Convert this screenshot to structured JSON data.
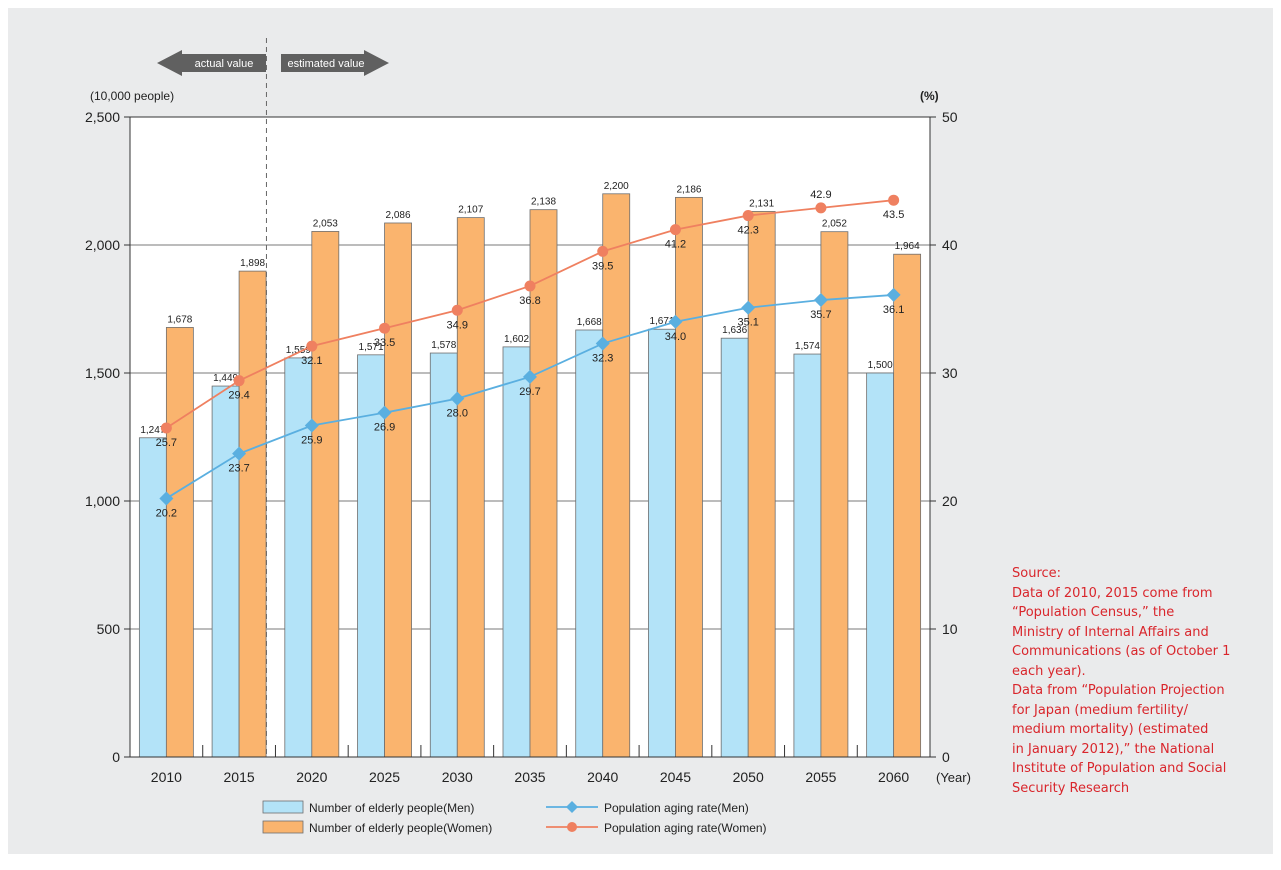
{
  "chart_data": {
    "type": "bar",
    "categories": [
      "2010",
      "2015",
      "2020",
      "2025",
      "2030",
      "2035",
      "2040",
      "2045",
      "2050",
      "2055",
      "2060"
    ],
    "x_unit": "(Year)",
    "left_axis": {
      "unit": "(10,000 people)",
      "ylim": [
        0,
        2500
      ],
      "ticks": [
        "0",
        "500",
        "1,000",
        "1,500",
        "2,000",
        "2,500"
      ]
    },
    "right_axis": {
      "unit": "(%)",
      "ylim": [
        0,
        50
      ],
      "ticks": [
        "0",
        "10",
        "20",
        "30",
        "40",
        "50"
      ]
    },
    "bars": [
      {
        "name": "Number of elderly people(Men)",
        "color": "#b3e3f8",
        "values": [
          1247,
          1449,
          1559,
          1571,
          1578,
          1602,
          1668,
          1671,
          1636,
          1574,
          1500
        ],
        "labels": [
          "1,247",
          "1,449",
          "1,559",
          "1,571",
          "1,578",
          "1,602",
          "1,668",
          "1,671",
          "1,636",
          "1,574",
          "1,500"
        ]
      },
      {
        "name": "Number of elderly people(Women)",
        "color": "#fab46e",
        "values": [
          1678,
          1898,
          2053,
          2086,
          2107,
          2138,
          2200,
          2186,
          2131,
          2052,
          1964
        ],
        "labels": [
          "1,678",
          "1,898",
          "2,053",
          "2,086",
          "2,107",
          "2,138",
          "2,200",
          "2,186",
          "2,131",
          "2,052",
          "1,964"
        ]
      }
    ],
    "lines": [
      {
        "name": "Population aging rate(Men)",
        "color": "#5aafe0",
        "marker": "diamond",
        "values": [
          20.2,
          23.7,
          25.9,
          26.9,
          28.0,
          29.7,
          32.3,
          34.0,
          35.1,
          35.7,
          36.1
        ],
        "labels": [
          "20.2",
          "23.7",
          "25.9",
          "26.9",
          "28.0",
          "29.7",
          "32.3",
          "34.0",
          "35.1",
          "35.7",
          "36.1"
        ]
      },
      {
        "name": "Population aging rate(Women)",
        "color": "#ef8060",
        "marker": "circle",
        "values": [
          25.7,
          29.4,
          32.1,
          33.5,
          34.9,
          36.8,
          39.5,
          41.2,
          42.3,
          42.9,
          43.5
        ],
        "labels": [
          "25.7",
          "29.4",
          "32.1",
          "33.5",
          "34.9",
          "36.8",
          "39.5",
          "41.2",
          "42.3",
          "42.9",
          "43.5"
        ]
      }
    ],
    "annotations": {
      "actual": "actual value",
      "estimated": "estimated value"
    },
    "grid": true,
    "legend_position": "bottom"
  },
  "source_lines": [
    "Source:",
    "Data of 2010, 2015 come from",
    "“Population Census,” the",
    "Ministry of Internal Affairs and",
    "Communications (as of October 1",
    "each year).",
    "Data from “Population Projection",
    "for Japan (medium fertility/",
    "medium mortality) (estimated",
    "in January 2012),” the National",
    "Institute of Population and Social",
    "Security Research"
  ]
}
